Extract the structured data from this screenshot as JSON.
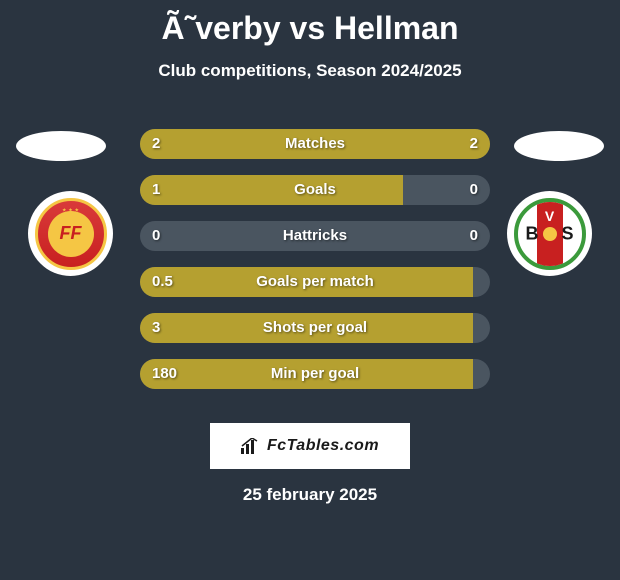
{
  "title": "Ã˜verby vs Hellman",
  "subtitle": "Club competitions, Season 2024/2025",
  "date": "25 february 2025",
  "branding": "FcTables.com",
  "colors": {
    "background": "#2a3440",
    "text": "#ffffff",
    "bar_track": "#4a5560",
    "bar_fill": "#b5a030",
    "footer_bg": "#ffffff",
    "footer_text": "#1a1a1a"
  },
  "left_team": {
    "name": "Kalmar FF",
    "badge_text": "FF",
    "badge_primary": "#c82020",
    "badge_secondary": "#f5c644"
  },
  "right_team": {
    "name": "Varbergs BoIS",
    "badge_letters": {
      "v": "V",
      "b": "B",
      "s": "S"
    },
    "badge_border": "#3b9a3b",
    "badge_stripe": "#c82020",
    "badge_dot": "#f5c644"
  },
  "stats": [
    {
      "label": "Matches",
      "left_value": "2",
      "right_value": "2",
      "left_pct": 50,
      "right_pct": 50
    },
    {
      "label": "Goals",
      "left_value": "1",
      "right_value": "0",
      "left_pct": 75,
      "right_pct": 0
    },
    {
      "label": "Hattricks",
      "left_value": "0",
      "right_value": "0",
      "left_pct": 0,
      "right_pct": 0
    },
    {
      "label": "Goals per match",
      "left_value": "0.5",
      "right_value": "",
      "left_pct": 95,
      "right_pct": 0
    },
    {
      "label": "Shots per goal",
      "left_value": "3",
      "right_value": "",
      "left_pct": 95,
      "right_pct": 0
    },
    {
      "label": "Min per goal",
      "left_value": "180",
      "right_value": "",
      "left_pct": 95,
      "right_pct": 0
    }
  ]
}
